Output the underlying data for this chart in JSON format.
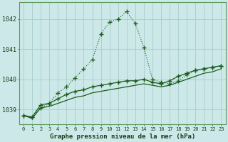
{
  "title": "Graphe pression niveau de la mer (hPa)",
  "background_color": "#cce8e8",
  "plot_bg_color": "#cce8e8",
  "grid_color": "#aacccc",
  "line_color": "#1a5c1a",
  "hours": [
    0,
    1,
    2,
    3,
    4,
    5,
    6,
    7,
    8,
    9,
    10,
    11,
    12,
    13,
    14,
    15,
    16,
    17,
    18,
    19,
    20,
    21,
    22,
    23
  ],
  "series1_dotted": [
    1038.8,
    1038.75,
    1039.05,
    1039.2,
    1039.55,
    1039.75,
    1040.05,
    1040.35,
    1040.65,
    1041.5,
    1041.9,
    1042.0,
    1042.25,
    1041.85,
    1041.05,
    1040.0,
    1039.9,
    1039.85,
    1039.95,
    1040.15,
    1040.3,
    1040.35,
    1040.4,
    1040.45
  ],
  "series2_solid_upper": [
    1038.8,
    1038.75,
    1039.15,
    1039.2,
    1039.35,
    1039.5,
    1039.6,
    1039.65,
    1039.75,
    1039.8,
    1039.85,
    1039.9,
    1039.95,
    1039.95,
    1040.0,
    1039.9,
    1039.85,
    1039.95,
    1040.1,
    1040.2,
    1040.3,
    1040.35,
    1040.4,
    1040.45
  ],
  "series3_solid_lower": [
    1038.8,
    1038.7,
    1039.05,
    1039.1,
    1039.2,
    1039.3,
    1039.4,
    1039.45,
    1039.55,
    1039.6,
    1039.65,
    1039.7,
    1039.75,
    1039.8,
    1039.85,
    1039.8,
    1039.75,
    1039.8,
    1039.9,
    1040.0,
    1040.1,
    1040.2,
    1040.25,
    1040.35
  ],
  "ylim": [
    1038.5,
    1042.55
  ],
  "yticks": [
    1039,
    1040,
    1041,
    1042
  ],
  "marker": "+",
  "marker_size": 4
}
